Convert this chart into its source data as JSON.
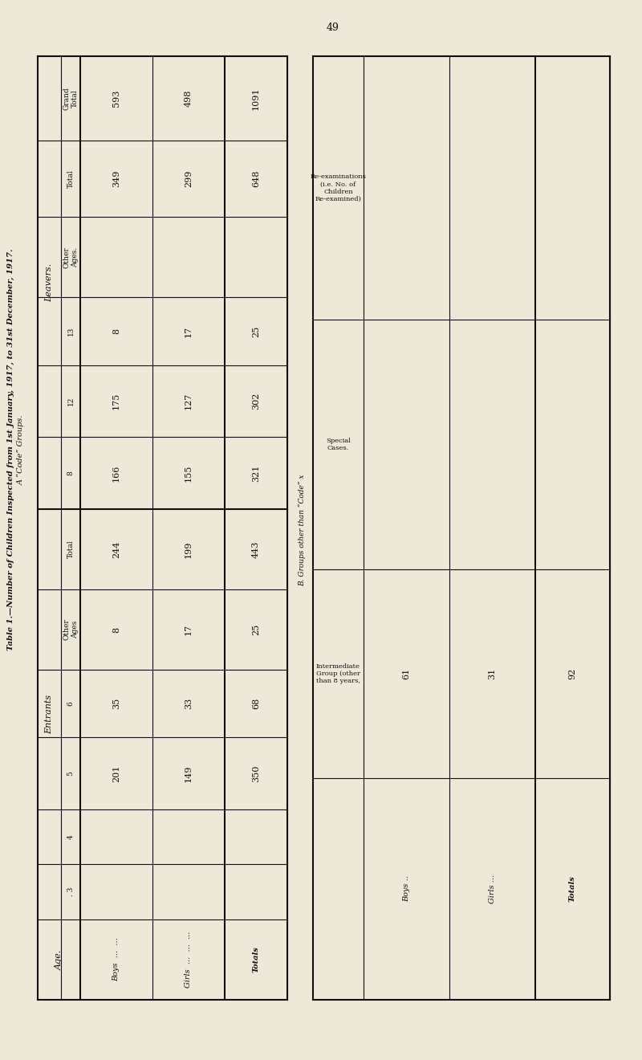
{
  "title": "Table 1.—Number of Children Inspected from 1st January, 1917, to 31st December, 1917.",
  "subtitle_a": "A “Code” Groups.",
  "subtitle_b": "B. Groups other than “Code” x",
  "page_number": "49",
  "bg_color": "#ede8d8",
  "table_bg": "#f5f0e0",
  "table_a": {
    "col_headers_entrants": [
      ".3",
      "4",
      "5",
      "6",
      "Other\nAges",
      "Total"
    ],
    "col_headers_leavers": [
      "8",
      "12",
      "13",
      "Other\nAges.",
      "Total",
      "Grand\nTotal"
    ],
    "rows": [
      {
        "label": "Boys  ...  ...",
        "ent": [
          "",
          "",
          "201",
          "35",
          "8",
          "244"
        ],
        "lv": [
          "166",
          "175",
          "8",
          "",
          "349",
          "593"
        ]
      },
      {
        "label": "Girls  ...  ...  ...",
        "ent": [
          "",
          "",
          "149",
          "33",
          "17",
          "199"
        ],
        "lv": [
          "155",
          "127",
          "17",
          "",
          "299",
          "498"
        ]
      },
      {
        "label": "Totals",
        "ent": [
          "",
          "",
          "350",
          "68",
          "25",
          "443"
        ],
        "lv": [
          "321",
          "302",
          "25",
          "",
          "648",
          "1091"
        ]
      }
    ]
  },
  "table_b": {
    "col_headers": [
      "Intermediate\nGroup (other\nthan 8 years,",
      "Special\nCases.",
      "Re-examinations\n(i.e. No. of\nChildren\nRe-examined)"
    ],
    "rows": [
      {
        "label": "Boys  ..",
        "values": [
          "61",
          "",
          ""
        ]
      },
      {
        "label": "Girls  ...",
        "values": [
          "31",
          "",
          ""
        ]
      },
      {
        "label": "Totals",
        "values": [
          "92",
          "",
          ""
        ]
      }
    ]
  }
}
